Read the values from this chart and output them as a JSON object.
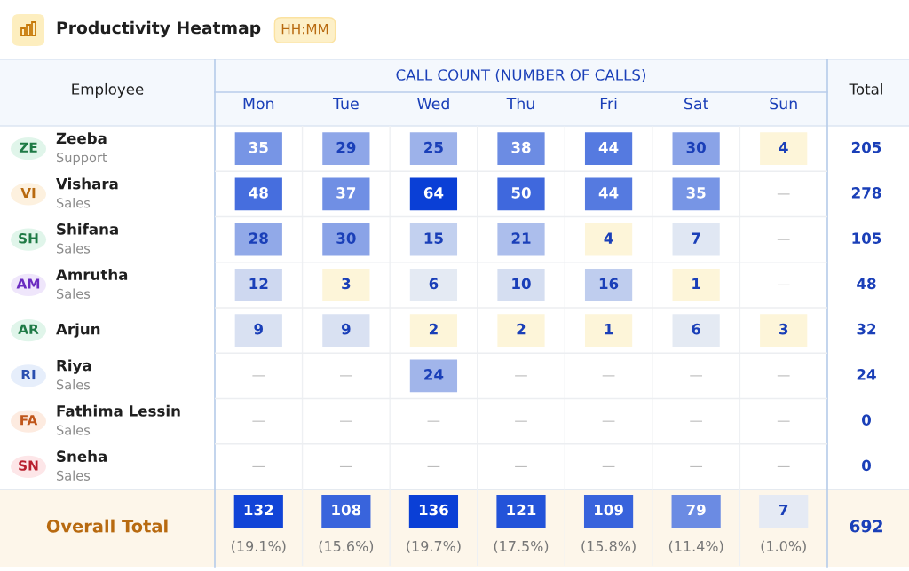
{
  "chart_data": [
    {
      "type": "heatmap",
      "title": "Productivity Heatmap",
      "subtitle": "HH:MM",
      "xlabel": "CALL COUNT (NUMBER OF CALLS)",
      "ylabel": "Employee",
      "y2label": "Total",
      "categories": [
        "Mon",
        "Tue",
        "Wed",
        "Thu",
        "Fri",
        "Sat",
        "Sun"
      ],
      "y_categories": [
        "Zeeba\nSupport",
        "Vishara\nSales",
        "Shifana\nSales",
        "Amrutha\nSales",
        "Arjun",
        "Riya\nSales",
        "Fathima Lessin\nSales",
        "Sneha\nSales"
      ],
      "y2_categories": [
        "205",
        "278",
        "105",
        "48",
        "32",
        "24",
        "0",
        "0"
      ],
      "annotations": [
        "ZE",
        "VI",
        "SH",
        "AM",
        "AR",
        "RI",
        "FA",
        "SN"
      ],
      "cells": [
        [
          35,
          29,
          25,
          38,
          44,
          30,
          4
        ],
        [
          48,
          37,
          64,
          50,
          44,
          35,
          null
        ],
        [
          28,
          30,
          15,
          21,
          4,
          7,
          null
        ],
        [
          12,
          3,
          6,
          10,
          16,
          1,
          null
        ],
        [
          9,
          9,
          2,
          2,
          1,
          6,
          3
        ],
        [
          null,
          null,
          24,
          null,
          null,
          null,
          null
        ],
        [
          null,
          null,
          null,
          null,
          null,
          null,
          null
        ],
        [
          null,
          null,
          null,
          null,
          null,
          null,
          null
        ]
      ],
      "cell_labels": [
        [
          "35",
          "29",
          "25",
          "38",
          "44",
          "30",
          "4"
        ],
        [
          "48",
          "37",
          "64",
          "50",
          "44",
          "35",
          "—"
        ],
        [
          "28",
          "30",
          "15",
          "21",
          "4",
          "7",
          "—"
        ],
        [
          "12",
          "3",
          "6",
          "10",
          "16",
          "1",
          "—"
        ],
        [
          "9",
          "9",
          "2",
          "2",
          "1",
          "6",
          "3"
        ],
        [
          "—",
          "—",
          "24",
          "—",
          "—",
          "—",
          "—"
        ],
        [
          "—",
          "—",
          "—",
          "—",
          "—",
          "—",
          "—"
        ],
        [
          "—",
          "—",
          "—",
          "—",
          "—",
          "—",
          "—"
        ]
      ]
    },
    {
      "type": "heatmap",
      "data_labels": true,
      "categories": [
        null,
        null,
        null,
        null,
        null,
        null,
        null
      ],
      "y_categories": [
        "Overall Total"
      ],
      "y2_categories": [
        "692"
      ],
      "cells": [
        [
          132,
          108,
          136,
          121,
          109,
          79,
          7
        ]
      ],
      "annotations": [
        "(19.1%)",
        "(15.6%)",
        "(19.7%)",
        "(17.5%)",
        "(15.8%)",
        "(11.4%)",
        "(1.0%)"
      ]
    }
  ]
}
